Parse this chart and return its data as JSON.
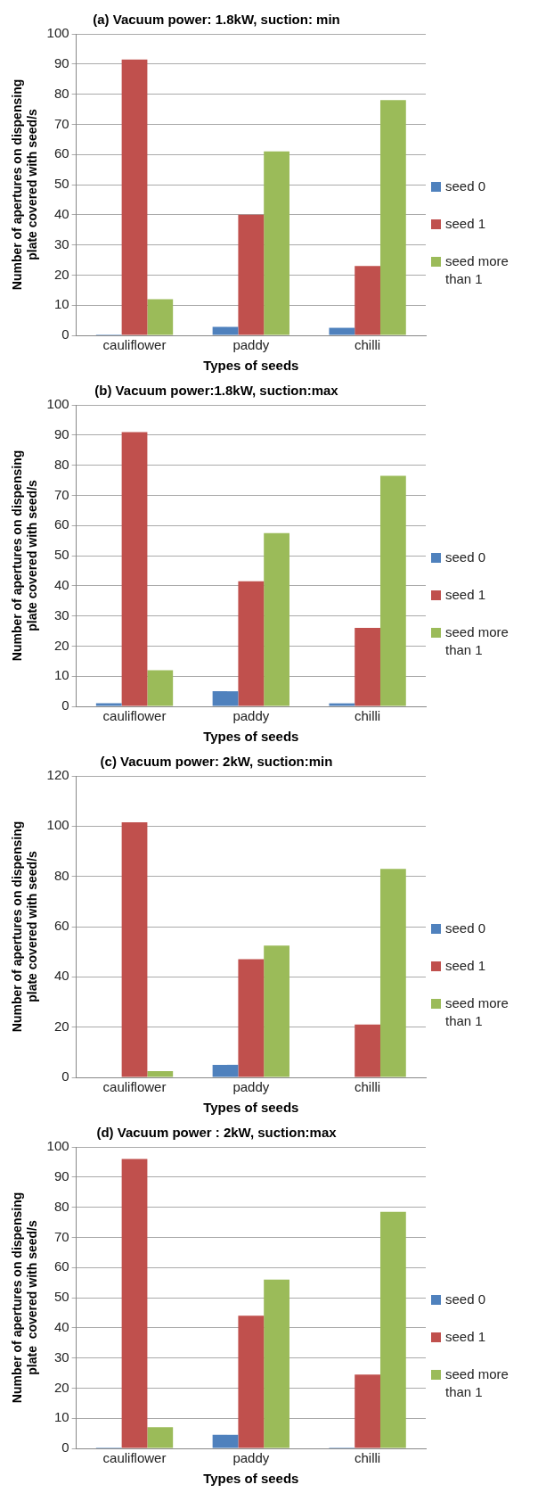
{
  "chart_data": [
    {
      "type": "bar",
      "title": "(a) Vacuum power: 1.8kW, suction: min",
      "xlabel": "Types of seeds",
      "ylabel": "Number of apertures on dispensing plate covered with seed/s",
      "categories": [
        "cauliflower",
        "paddy",
        "chilli"
      ],
      "series": [
        {
          "name": "seed 0",
          "color": "#4f81bd",
          "values": [
            0.3,
            2.8,
            2.5
          ]
        },
        {
          "name": "seed 1",
          "color": "#c0504d",
          "values": [
            91.5,
            40,
            23
          ]
        },
        {
          "name": "seed more than 1",
          "color": "#9bbb59",
          "values": [
            12,
            61,
            78
          ]
        }
      ],
      "ylim": [
        0,
        100
      ],
      "yticks": [
        0,
        10,
        20,
        30,
        40,
        50,
        60,
        70,
        80,
        90,
        100
      ],
      "grid": "y",
      "legend": "right"
    },
    {
      "type": "bar",
      "title": "(b) Vacuum power:1.8kW, suction:max",
      "xlabel": "Types of seeds",
      "ylabel": "Number of apertures on dispensing plate covered with seed/s",
      "categories": [
        "cauliflower",
        "paddy",
        "chilli"
      ],
      "series": [
        {
          "name": "seed 0",
          "color": "#4f81bd",
          "values": [
            1,
            5,
            1
          ]
        },
        {
          "name": "seed 1",
          "color": "#c0504d",
          "values": [
            91,
            41.5,
            26
          ]
        },
        {
          "name": "seed more than 1",
          "color": "#9bbb59",
          "values": [
            12,
            57.5,
            76.5
          ]
        }
      ],
      "ylim": [
        0,
        100
      ],
      "yticks": [
        0,
        10,
        20,
        30,
        40,
        50,
        60,
        70,
        80,
        90,
        100
      ],
      "grid": "y",
      "legend": "right"
    },
    {
      "type": "bar",
      "title": "(c) Vacuum power: 2kW, suction:min",
      "xlabel": "Types of seeds",
      "ylabel": "Number of apertures on dispensing plate covered with seed/s",
      "categories": [
        "cauliflower",
        "paddy",
        "chilli"
      ],
      "series": [
        {
          "name": "seed 0",
          "color": "#4f81bd",
          "values": [
            0,
            5,
            0
          ]
        },
        {
          "name": "seed 1",
          "color": "#c0504d",
          "values": [
            101.5,
            47,
            21
          ]
        },
        {
          "name": "seed more than 1",
          "color": "#9bbb59",
          "values": [
            2.5,
            52.5,
            83
          ]
        }
      ],
      "ylim": [
        0,
        120
      ],
      "yticks": [
        0,
        20,
        40,
        60,
        80,
        100,
        120
      ],
      "grid": "y",
      "legend": "right"
    },
    {
      "type": "bar",
      "title": "(d) Vacuum power : 2kW, suction:max",
      "xlabel": "Types of seeds",
      "ylabel": "Number of apertures on dispensing plate  covered with seed/s",
      "categories": [
        "cauliflower",
        "paddy",
        "chilli"
      ],
      "series": [
        {
          "name": "seed 0",
          "color": "#4f81bd",
          "values": [
            0.3,
            4.5,
            0.3
          ]
        },
        {
          "name": "seed 1",
          "color": "#c0504d",
          "values": [
            96,
            44,
            24.5
          ]
        },
        {
          "name": "seed more than 1",
          "color": "#9bbb59",
          "values": [
            7,
            56,
            78.5
          ]
        }
      ],
      "ylim": [
        0,
        100
      ],
      "yticks": [
        0,
        10,
        20,
        30,
        40,
        50,
        60,
        70,
        80,
        90,
        100
      ],
      "grid": "y",
      "legend": "right"
    }
  ]
}
